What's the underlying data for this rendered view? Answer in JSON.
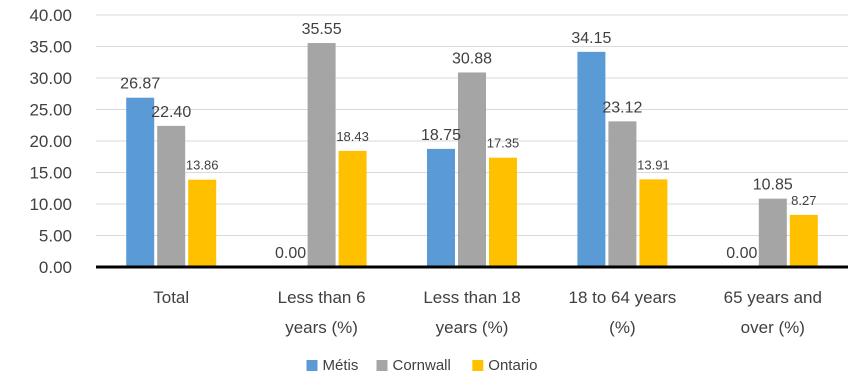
{
  "chart_data": {
    "type": "bar",
    "title": "",
    "xlabel": "",
    "ylabel": "",
    "ylim": [
      0,
      40
    ],
    "yticks": [
      "0.00",
      "5.00",
      "10.00",
      "15.00",
      "20.00",
      "25.00",
      "30.00",
      "35.00",
      "40.00"
    ],
    "grid": "horizontal",
    "legend_position": "bottom",
    "categories": [
      [
        "Total"
      ],
      [
        "Less than 6",
        "years (%)"
      ],
      [
        "Less than 18",
        "years (%)"
      ],
      [
        "18 to 64 years",
        "(%)"
      ],
      [
        "65 years and",
        "over (%)"
      ]
    ],
    "series": [
      {
        "name": "Métis",
        "color": "#5B9BD5",
        "values": [
          26.87,
          0.0,
          18.75,
          34.15,
          0.0
        ],
        "labels": [
          "26.87",
          "0.00",
          "18.75",
          "34.15",
          "0.00"
        ]
      },
      {
        "name": "Cornwall",
        "color": "#A5A5A5",
        "values": [
          22.4,
          35.55,
          30.88,
          23.12,
          10.85
        ],
        "labels": [
          "22.40",
          "35.55",
          "30.88",
          "23.12",
          "10.85"
        ]
      },
      {
        "name": "Ontario",
        "color": "#FFC000",
        "values": [
          13.86,
          18.43,
          17.35,
          13.91,
          8.27
        ],
        "labels": [
          "13.86",
          "18.43",
          "17.35",
          "13.91",
          "8.27"
        ]
      }
    ]
  }
}
